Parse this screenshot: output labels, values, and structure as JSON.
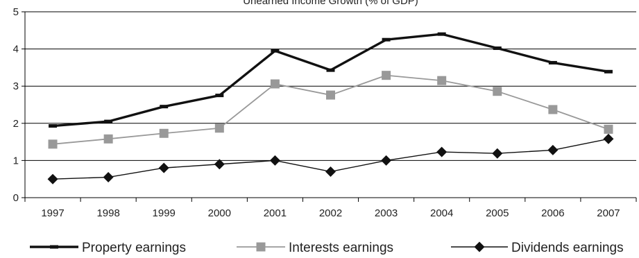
{
  "chart_data": {
    "type": "line",
    "title": "Unearned Income Growth (% of GDP)",
    "categories": [
      "1997",
      "1998",
      "1999",
      "2000",
      "2001",
      "2002",
      "2003",
      "2004",
      "2005",
      "2006",
      "2007"
    ],
    "ylim": [
      0,
      5
    ],
    "yticks": [
      "0",
      "1",
      "2",
      "3",
      "4",
      "5"
    ],
    "grid": "horizontal",
    "legend_position": "bottom",
    "series": [
      {
        "name": "Property earnings",
        "values": [
          1.93,
          2.05,
          2.45,
          2.75,
          3.95,
          3.43,
          4.25,
          4.4,
          4.02,
          3.63,
          3.39
        ],
        "color": "#111111",
        "marker": "dash"
      },
      {
        "name": "Interests earnings",
        "values": [
          1.44,
          1.58,
          1.73,
          1.87,
          3.06,
          2.76,
          3.29,
          3.15,
          2.86,
          2.37,
          1.84
        ],
        "color": "#999999",
        "marker": "square"
      },
      {
        "name": "Dividends earnings",
        "values": [
          0.5,
          0.55,
          0.8,
          0.9,
          1.0,
          0.7,
          1.0,
          1.23,
          1.19,
          1.28,
          1.58
        ],
        "color": "#111111",
        "marker": "diamond"
      }
    ]
  }
}
